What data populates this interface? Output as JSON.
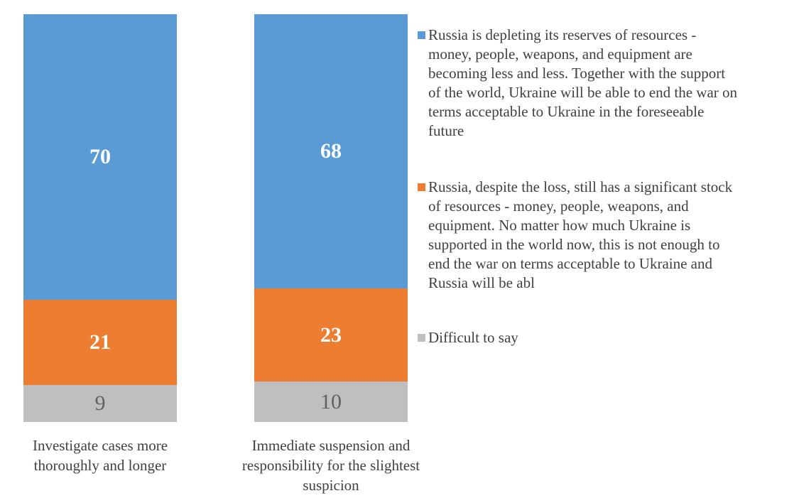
{
  "chart": {
    "background": "#FFFFFF",
    "text_color": "#404040",
    "grid": false,
    "axis_lines": false
  },
  "chart_data": {
    "type": "bar",
    "variant": "100-percent-stacked-column",
    "legend_position": "right",
    "grid": false,
    "title": "",
    "xlabel": "",
    "ylabel": "",
    "categories": [
      "Investigate cases more\nthoroughly and longer",
      "Immediate suspension and\nresponsibility for the slightest\nsuspicion"
    ],
    "series": [
      {
        "name": "Russia is depleting its reserves of resources -\nmoney, people, weapons, and equipment are\nbecoming less and less. Together with the support\nof the world, Ukraine will be able to end the war on\nterms acceptable to Ukraine in the foreseeable\nfuture",
        "color": "#5B9BD5",
        "label_color": "#FFFFFF",
        "label_bold": true,
        "values": [
          70,
          68
        ]
      },
      {
        "name": "Russia, despite the loss, still has a significant stock\nof resources - money, people, weapons, and\nequipment. No matter how much Ukraine is\nsupported in the world now, this is not enough to\nend the war on terms acceptable to Ukraine and\nRussia will be abl",
        "color": "#ED7D31",
        "label_color": "#FFFFFF",
        "label_bold": true,
        "values": [
          21,
          23
        ]
      },
      {
        "name": "Difficult to say",
        "color": "#BFBFBF",
        "label_color": "#616161",
        "label_bold": false,
        "values": [
          9,
          10
        ]
      }
    ]
  }
}
